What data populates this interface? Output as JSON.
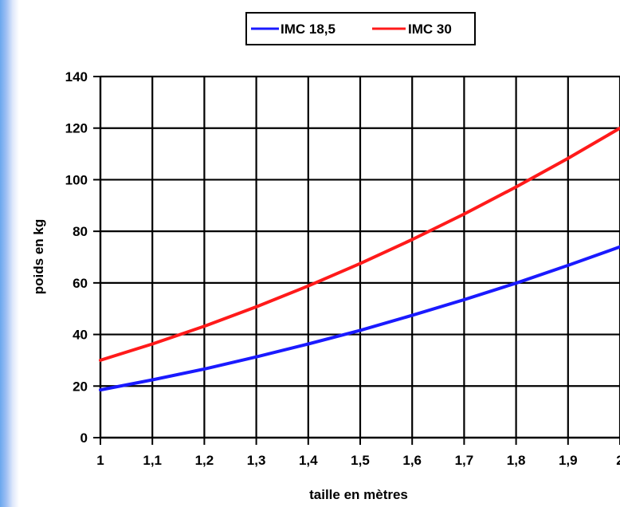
{
  "chart_data": {
    "type": "line",
    "title": "",
    "xlabel": "taille en mètres",
    "ylabel": "poids en kg",
    "xlim": [
      1,
      2
    ],
    "ylim": [
      0,
      140
    ],
    "xticks": [
      1,
      1.1,
      1.2,
      1.3,
      1.4,
      1.5,
      1.6,
      1.7,
      1.8,
      1.9,
      2
    ],
    "xtick_labels": [
      "1",
      "1,1",
      "1,2",
      "1,3",
      "1,4",
      "1,5",
      "1,6",
      "1,7",
      "1,8",
      "1,9",
      "2"
    ],
    "yticks": [
      0,
      20,
      40,
      60,
      80,
      100,
      120,
      140
    ],
    "ytick_labels": [
      "0",
      "20",
      "40",
      "60",
      "80",
      "100",
      "120",
      "140"
    ],
    "grid": true,
    "legend_position": "top",
    "series": [
      {
        "name": "IMC 18,5",
        "color": "#1a1aff",
        "x": [
          1,
          1.1,
          1.2,
          1.3,
          1.4,
          1.5,
          1.6,
          1.7,
          1.8,
          1.9,
          2
        ],
        "y": [
          18.5,
          22.4,
          26.6,
          31.3,
          36.3,
          41.6,
          47.4,
          53.5,
          59.9,
          66.8,
          74
        ]
      },
      {
        "name": "IMC 30",
        "color": "#ff1a1a",
        "x": [
          1,
          1.1,
          1.2,
          1.3,
          1.4,
          1.5,
          1.6,
          1.7,
          1.8,
          1.9,
          2
        ],
        "y": [
          30,
          36.3,
          43.2,
          50.7,
          58.8,
          67.5,
          76.8,
          86.7,
          97.2,
          108.3,
          120
        ]
      }
    ]
  }
}
